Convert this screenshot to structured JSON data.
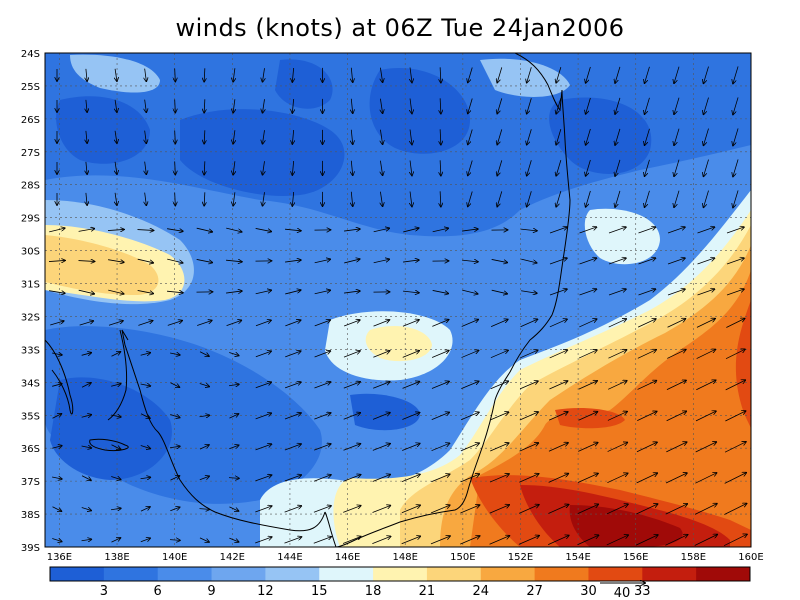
{
  "title": "winds (knots) at 06Z Tue 24jan2006",
  "lat_labels": [
    "24S",
    "25S",
    "26S",
    "27S",
    "28S",
    "29S",
    "30S",
    "31S",
    "32S",
    "33S",
    "34S",
    "35S",
    "36S",
    "37S",
    "38S",
    "39S"
  ],
  "lon_labels": [
    "136E",
    "138E",
    "140E",
    "142E",
    "144E",
    "146E",
    "148E",
    "150E",
    "152E",
    "154E",
    "156E",
    "158E",
    "160E"
  ],
  "colorbar": {
    "labels": [
      "3",
      "6",
      "9",
      "12",
      "15",
      "18",
      "21",
      "24",
      "27",
      "30",
      "33"
    ],
    "colors": [
      "#1e5fd6",
      "#2f74e0",
      "#4a8cea",
      "#6ea6ef",
      "#96c4f4",
      "#dff6fb",
      "#fff3b0",
      "#fcd57a",
      "#f8a840",
      "#f07a1e",
      "#e24a12",
      "#c41e0e",
      "#a00a08"
    ],
    "reference_vector_label": "40"
  },
  "field": {
    "units": "knots",
    "lon_range": [
      135.5,
      160
    ],
    "lat_range": [
      -39,
      -24
    ]
  }
}
